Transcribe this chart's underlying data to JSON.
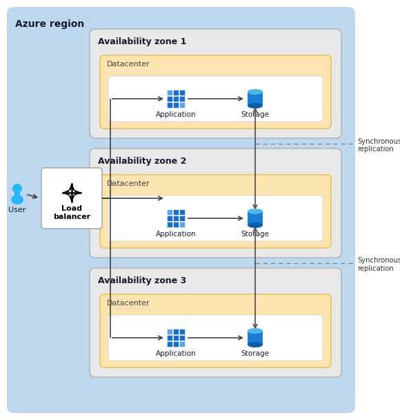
{
  "fig_width": 5.8,
  "fig_height": 6.08,
  "bg_color": "#ffffff",
  "azure_region_color": "#bdd7ee",
  "az_box_color": "#e8e8e8",
  "az_box_border": "#b0b0b0",
  "datacenter_color": "#fce4b0",
  "datacenter_border": "#e8b84b",
  "white_inner_color": "#ffffff",
  "lb_box_color": "#ffffff",
  "lb_box_border": "#aaaaaa",
  "title": "Azure region",
  "az_labels": [
    "Availability zone 1",
    "Availability zone 2",
    "Availability zone 3"
  ],
  "dc_label": "Datacenter",
  "lb_label": "Load\nbalancer",
  "user_label": "User",
  "app_label": "Application",
  "storage_label": "Storage",
  "sync_label": "Synchronous\nreplication",
  "arrow_color": "#404040",
  "sync_line_color": "#555555",
  "dashed_line_color": "#808080",
  "app_color_main": "#1a6ec7",
  "app_color_light": "#5ba3e8",
  "storage_color_dark": "#0d5ca6",
  "storage_color_mid": "#1a7fd4",
  "storage_color_top": "#4db8e8",
  "user_color": "#29b6f6",
  "user_color_dark": "#0288d1"
}
